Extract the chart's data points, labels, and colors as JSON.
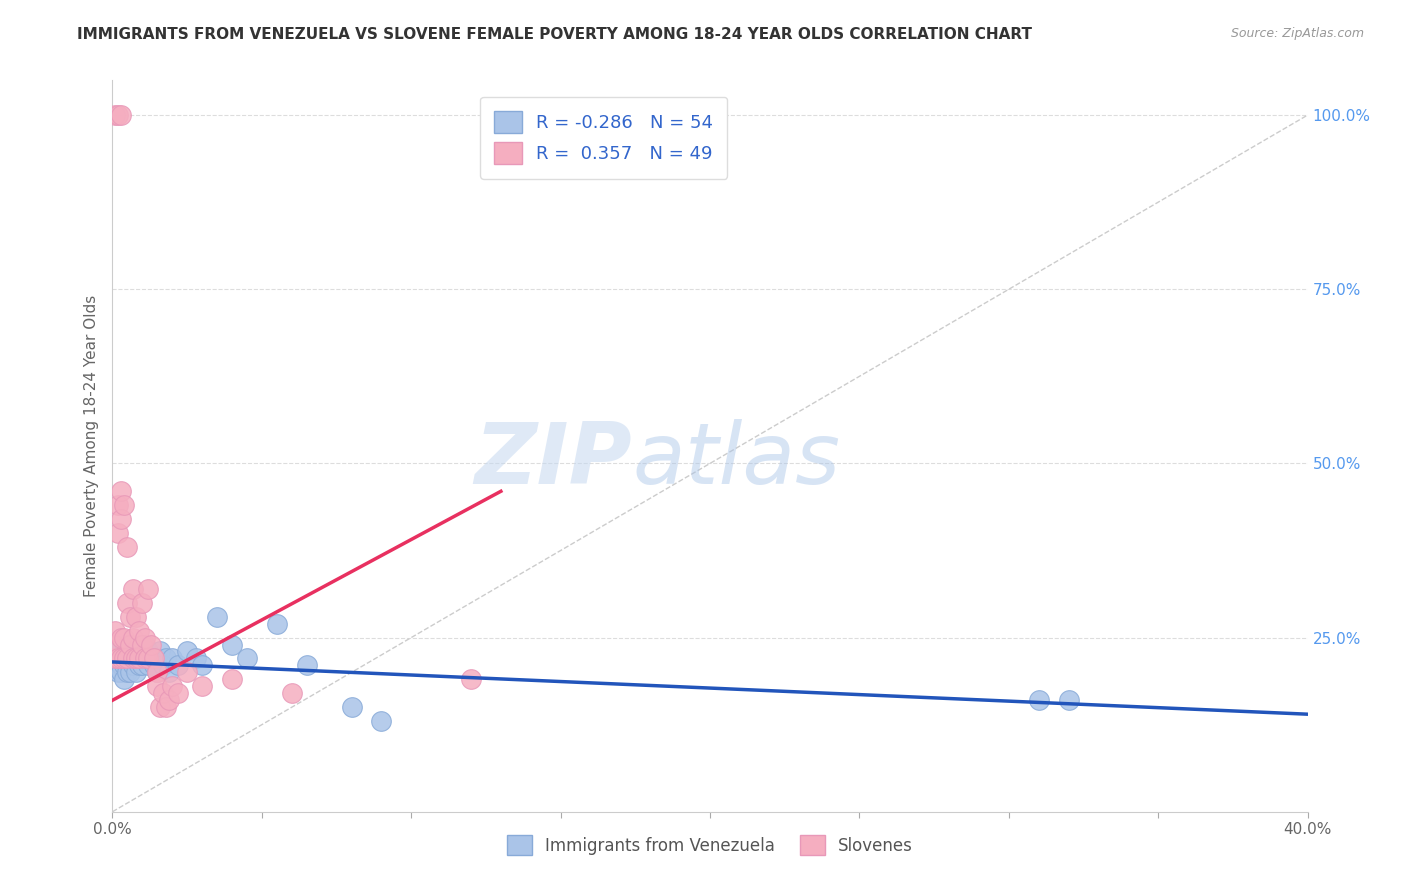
{
  "title": "IMMIGRANTS FROM VENEZUELA VS SLOVENE FEMALE POVERTY AMONG 18-24 YEAR OLDS CORRELATION CHART",
  "source": "Source: ZipAtlas.com",
  "ylabel": "Female Poverty Among 18-24 Year Olds",
  "xlim": [
    0.0,
    0.4
  ],
  "ylim": [
    0.0,
    1.05
  ],
  "xticks": [
    0.0,
    0.05,
    0.1,
    0.15,
    0.2,
    0.25,
    0.3,
    0.35,
    0.4
  ],
  "xticklabels": [
    "0.0%",
    "",
    "",
    "",
    "",
    "",
    "",
    "",
    "40.0%"
  ],
  "yticks_right": [
    0.0,
    0.25,
    0.5,
    0.75,
    1.0
  ],
  "ytick_labels_right": [
    "",
    "25.0%",
    "50.0%",
    "75.0%",
    "100.0%"
  ],
  "legend_r_blue": "-0.286",
  "legend_n_blue": "54",
  "legend_r_pink": " 0.357",
  "legend_n_pink": "49",
  "legend_label_blue": "Immigrants from Venezuela",
  "legend_label_pink": "Slovenes",
  "blue_color": "#aac4e8",
  "pink_color": "#f5aec0",
  "blue_line_color": "#2255bb",
  "pink_line_color": "#e83060",
  "blue_scatter": [
    [
      0.001,
      0.22
    ],
    [
      0.001,
      0.24
    ],
    [
      0.002,
      0.2
    ],
    [
      0.002,
      0.22
    ],
    [
      0.002,
      0.23
    ],
    [
      0.003,
      0.21
    ],
    [
      0.003,
      0.22
    ],
    [
      0.003,
      0.2
    ],
    [
      0.004,
      0.22
    ],
    [
      0.004,
      0.21
    ],
    [
      0.004,
      0.23
    ],
    [
      0.004,
      0.19
    ],
    [
      0.005,
      0.22
    ],
    [
      0.005,
      0.24
    ],
    [
      0.005,
      0.21
    ],
    [
      0.005,
      0.2
    ],
    [
      0.006,
      0.22
    ],
    [
      0.006,
      0.2
    ],
    [
      0.006,
      0.23
    ],
    [
      0.007,
      0.21
    ],
    [
      0.007,
      0.22
    ],
    [
      0.007,
      0.23
    ],
    [
      0.008,
      0.2
    ],
    [
      0.008,
      0.22
    ],
    [
      0.009,
      0.21
    ],
    [
      0.009,
      0.22
    ],
    [
      0.01,
      0.23
    ],
    [
      0.01,
      0.21
    ],
    [
      0.011,
      0.24
    ],
    [
      0.011,
      0.22
    ],
    [
      0.012,
      0.23
    ],
    [
      0.012,
      0.21
    ],
    [
      0.013,
      0.22
    ],
    [
      0.014,
      0.21
    ],
    [
      0.015,
      0.22
    ],
    [
      0.015,
      0.2
    ],
    [
      0.016,
      0.23
    ],
    [
      0.017,
      0.21
    ],
    [
      0.018,
      0.22
    ],
    [
      0.019,
      0.2
    ],
    [
      0.02,
      0.22
    ],
    [
      0.022,
      0.21
    ],
    [
      0.025,
      0.23
    ],
    [
      0.028,
      0.22
    ],
    [
      0.03,
      0.21
    ],
    [
      0.035,
      0.28
    ],
    [
      0.04,
      0.24
    ],
    [
      0.045,
      0.22
    ],
    [
      0.055,
      0.27
    ],
    [
      0.065,
      0.21
    ],
    [
      0.08,
      0.15
    ],
    [
      0.09,
      0.13
    ],
    [
      0.31,
      0.16
    ],
    [
      0.32,
      0.16
    ]
  ],
  "pink_scatter": [
    [
      0.001,
      0.22
    ],
    [
      0.001,
      0.24
    ],
    [
      0.001,
      0.26
    ],
    [
      0.001,
      1.0
    ],
    [
      0.002,
      1.0
    ],
    [
      0.003,
      1.0
    ],
    [
      0.002,
      0.22
    ],
    [
      0.002,
      0.4
    ],
    [
      0.002,
      0.44
    ],
    [
      0.003,
      0.22
    ],
    [
      0.003,
      0.25
    ],
    [
      0.003,
      0.42
    ],
    [
      0.003,
      0.46
    ],
    [
      0.004,
      0.44
    ],
    [
      0.004,
      0.25
    ],
    [
      0.004,
      0.22
    ],
    [
      0.005,
      0.38
    ],
    [
      0.005,
      0.3
    ],
    [
      0.005,
      0.22
    ],
    [
      0.006,
      0.28
    ],
    [
      0.006,
      0.24
    ],
    [
      0.007,
      0.32
    ],
    [
      0.007,
      0.25
    ],
    [
      0.007,
      0.22
    ],
    [
      0.008,
      0.28
    ],
    [
      0.008,
      0.22
    ],
    [
      0.009,
      0.26
    ],
    [
      0.009,
      0.22
    ],
    [
      0.01,
      0.3
    ],
    [
      0.01,
      0.24
    ],
    [
      0.011,
      0.25
    ],
    [
      0.011,
      0.22
    ],
    [
      0.012,
      0.32
    ],
    [
      0.012,
      0.22
    ],
    [
      0.013,
      0.24
    ],
    [
      0.014,
      0.22
    ],
    [
      0.015,
      0.2
    ],
    [
      0.015,
      0.18
    ],
    [
      0.016,
      0.15
    ],
    [
      0.017,
      0.17
    ],
    [
      0.018,
      0.15
    ],
    [
      0.019,
      0.16
    ],
    [
      0.02,
      0.18
    ],
    [
      0.022,
      0.17
    ],
    [
      0.025,
      0.2
    ],
    [
      0.03,
      0.18
    ],
    [
      0.04,
      0.19
    ],
    [
      0.06,
      0.17
    ],
    [
      0.12,
      0.19
    ]
  ],
  "blue_trend": [
    0.0,
    0.4,
    0.215,
    0.14
  ],
  "pink_trend": [
    0.0,
    0.13,
    0.16,
    0.46
  ],
  "watermark_zip": "ZIP",
  "watermark_atlas": "atlas",
  "background_color": "#ffffff",
  "grid_color": "#dddddd"
}
